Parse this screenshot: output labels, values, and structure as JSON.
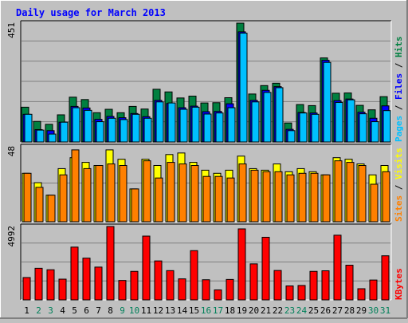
{
  "chart_data": {
    "type": "bar",
    "title": "Daily usage for March 2013",
    "categories": [
      "1",
      "2",
      "3",
      "4",
      "5",
      "6",
      "7",
      "8",
      "9",
      "10",
      "11",
      "12",
      "13",
      "14",
      "15",
      "16",
      "17",
      "18",
      "19",
      "20",
      "21",
      "22",
      "23",
      "24",
      "25",
      "26",
      "27",
      "28",
      "29",
      "30",
      "31"
    ],
    "weekend_days": [
      "2",
      "3",
      "9",
      "10",
      "16",
      "17",
      "23",
      "24",
      "30",
      "31"
    ],
    "panels": [
      {
        "id": "hits-files-pages",
        "max_label": "451",
        "ylim": [
          0,
          451
        ],
        "series": [
          {
            "name": "Hits",
            "color": "#008040",
            "values": [
              132,
              78,
              67,
              103,
              170,
              161,
              111,
              124,
              111,
              135,
              125,
              200,
              190,
              167,
              174,
              148,
              149,
              168,
              451,
              182,
              214,
              223,
              72,
              142,
              138,
              319,
              185,
              186,
              139,
              122,
              172
            ]
          },
          {
            "name": "Files",
            "color": "#0000ff",
            "values": [
              105,
              47,
              43,
              75,
              135,
              129,
              86,
              97,
              92,
              108,
              96,
              158,
              146,
              130,
              136,
              115,
              116,
              145,
              418,
              158,
              196,
              210,
              48,
              112,
              110,
              310,
              157,
              163,
              113,
              90,
              137
            ]
          },
          {
            "name": "Pages",
            "color": "#00c0ff",
            "values": [
              105,
              45,
              30,
              75,
              130,
              120,
              77,
              90,
              85,
              105,
              90,
              152,
              148,
              124,
              132,
              106,
              110,
              130,
              413,
              152,
              188,
              206,
              43,
              110,
              105,
              302,
              150,
              160,
              107,
              77,
              119
            ]
          }
        ]
      },
      {
        "id": "visits-sites",
        "max_label": "48",
        "ylim": [
          0,
          48
        ],
        "series": [
          {
            "name": "Visits",
            "color": "#ffff00",
            "values": [
              31,
              25,
              17,
              34,
              41,
              38,
              36,
              46,
              40,
              21,
              40,
              36,
              43,
              44,
              38,
              33,
              31,
              33,
              42,
              34,
              33,
              37,
              32,
              34,
              32,
              30,
              41,
              40,
              37,
              30,
              36
            ]
          },
          {
            "name": "Sites",
            "color": "#ff8000",
            "values": [
              31,
              22,
              17,
              30,
              46,
              34,
              36,
              37,
              36,
              21,
              39,
              28,
              38,
              37,
              36,
              29,
              29,
              28,
              37,
              33,
              32,
              32,
              30,
              31,
              31,
              30,
              39,
              38,
              36,
              24,
              32
            ]
          }
        ]
      },
      {
        "id": "kbytes",
        "max_label": "4992",
        "ylim": [
          0,
          4992
        ],
        "series": [
          {
            "name": "KBytes",
            "color": "#ff0000",
            "values": [
              1520,
              2150,
              2050,
              1410,
              3590,
              2840,
              2230,
              4992,
              1320,
              1940,
              4340,
              2650,
              1990,
              1430,
              3350,
              1370,
              680,
              1390,
              4830,
              2450,
              4260,
              2000,
              950,
              980,
              1940,
              1980,
              4400,
              2360,
              760,
              1350,
              3000
            ]
          }
        ]
      }
    ]
  }
}
